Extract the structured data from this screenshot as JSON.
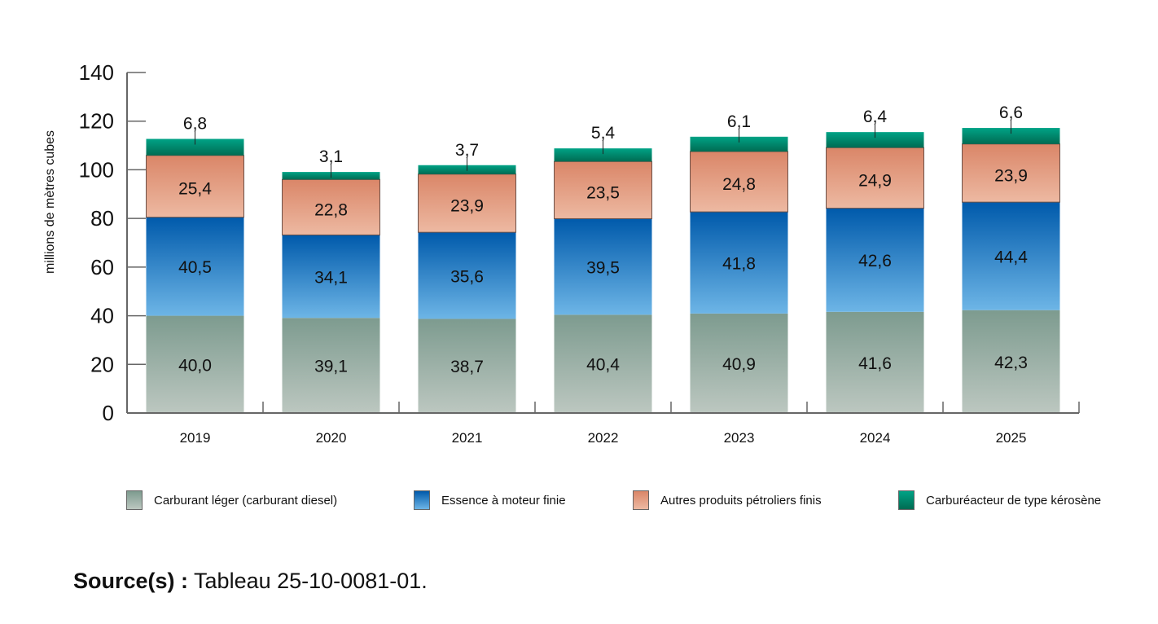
{
  "chart_data": {
    "type": "bar",
    "stacked": true,
    "categories": [
      "2019",
      "2020",
      "2021",
      "2022",
      "2023",
      "2024",
      "2025"
    ],
    "series": [
      {
        "name": "Carburant léger (carburant diesel)",
        "values": [
          40.0,
          39.1,
          38.7,
          40.4,
          40.9,
          41.6,
          42.3
        ],
        "labels": [
          "40,0",
          "39,1",
          "38,7",
          "40,4",
          "40,9",
          "41,6",
          "42,3"
        ],
        "color_top": "#7d9b8f",
        "color_bottom": "#bcc7c0"
      },
      {
        "name": "Essence à moteur finie",
        "values": [
          40.5,
          34.1,
          35.6,
          39.5,
          41.8,
          42.6,
          44.4
        ],
        "labels": [
          "40,5",
          "34,1",
          "35,6",
          "39,5",
          "41,8",
          "42,6",
          "44,4"
        ],
        "color_top": "#005aab",
        "color_bottom": "#6db5e6"
      },
      {
        "name": "Autres produits pétroliers finis",
        "values": [
          25.4,
          22.8,
          23.9,
          23.5,
          24.8,
          24.9,
          23.9
        ],
        "labels": [
          "25,4",
          "22,8",
          "23,9",
          "23,5",
          "24,8",
          "24,9",
          "23,9"
        ],
        "color_top": "#da8668",
        "color_bottom": "#edb9a2"
      },
      {
        "name": "Carburéacteur de type kérosène",
        "values": [
          6.8,
          3.1,
          3.7,
          5.4,
          6.1,
          6.4,
          6.6
        ],
        "labels": [
          "6,8",
          "3,1",
          "3,7",
          "5,4",
          "6,1",
          "6,4",
          "6,6"
        ],
        "color_top": "#00a386",
        "color_bottom": "#006b52"
      }
    ],
    "ylabel": "millions de mètres cubes",
    "xlabel": "",
    "ylim": [
      0,
      140
    ],
    "yticks": [
      0,
      20,
      40,
      60,
      80,
      100,
      120,
      140
    ],
    "grid": false,
    "legend_position": "bottom"
  },
  "source": {
    "label": "Source(s) :",
    "text": " Tableau 25-10-0081-01."
  }
}
